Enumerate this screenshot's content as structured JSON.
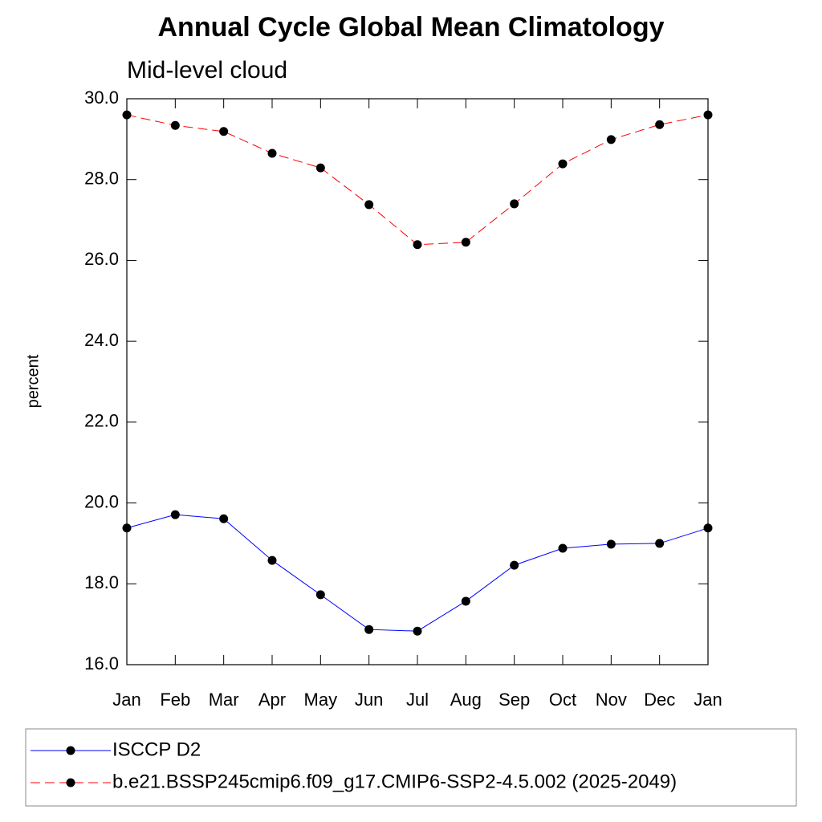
{
  "chart_data": {
    "type": "line",
    "title": "Annual Cycle Global Mean Climatology",
    "subtitle": "Mid-level cloud",
    "y_label": "percent",
    "categories": [
      "Jan",
      "Feb",
      "Mar",
      "Apr",
      "May",
      "Jun",
      "Jul",
      "Aug",
      "Sep",
      "Oct",
      "Nov",
      "Dec",
      "Jan"
    ],
    "series": [
      {
        "name": "ISCCP D2",
        "color": "#0000ff",
        "dash": "solid",
        "values": [
          19.38,
          19.71,
          19.61,
          18.58,
          17.73,
          16.87,
          16.83,
          17.57,
          18.46,
          18.88,
          18.98,
          19.0,
          19.38
        ]
      },
      {
        "name": "b.e21.BSSP245cmip6.f09_g17.CMIP6-SSP2-4.5.002 (2025-2049)",
        "color": "#ff0000",
        "dash": "dashed",
        "values": [
          29.6,
          29.34,
          29.19,
          28.65,
          28.29,
          27.38,
          26.39,
          26.45,
          27.4,
          28.39,
          28.99,
          29.36,
          29.6
        ]
      }
    ],
    "ylim": [
      16,
      30
    ],
    "yticks": [
      {
        "value": 16,
        "label": "16.0"
      },
      {
        "value": 18,
        "label": "18.0"
      },
      {
        "value": 20,
        "label": "20.0"
      },
      {
        "value": 22,
        "label": "22.0"
      },
      {
        "value": 24,
        "label": "24.0"
      },
      {
        "value": 26,
        "label": "26.0"
      },
      {
        "value": 28,
        "label": "28.0"
      },
      {
        "value": 30,
        "label": "30.0"
      }
    ],
    "grid": false
  }
}
